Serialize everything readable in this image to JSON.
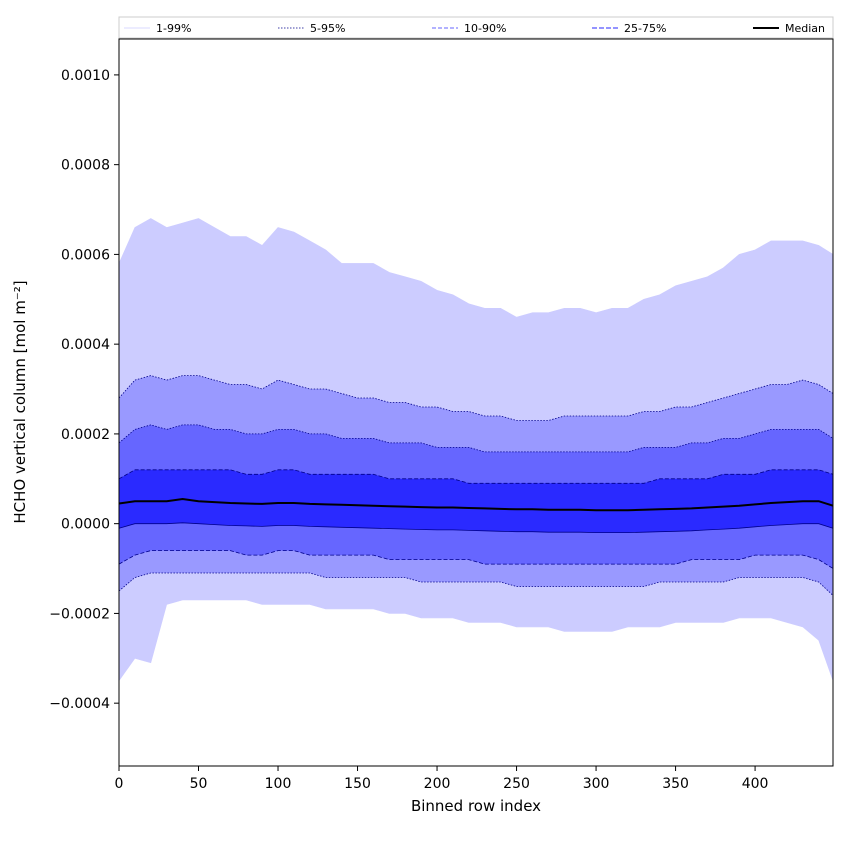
{
  "chart_data": {
    "type": "area",
    "xlabel": "Binned row index",
    "ylabel": "HCHO vertical column [mol m⁻²]",
    "xlim": [
      0,
      449
    ],
    "ylim": [
      -0.00054,
      0.00108
    ],
    "x_ticks": [
      0,
      50,
      100,
      150,
      200,
      250,
      300,
      350,
      400
    ],
    "y_ticks": [
      -0.0004,
      -0.0002,
      0.0,
      0.0002,
      0.0004,
      0.0006,
      0.0008,
      0.001
    ],
    "y_tick_labels": [
      "−0.0004",
      "−0.0002",
      "0.0000",
      "0.0002",
      "0.0004",
      "0.0006",
      "0.0008",
      "0.0010"
    ],
    "legend": {
      "placement": "top",
      "entries": [
        "1-99%",
        "5-95%",
        "10-90%",
        "25-75%",
        "Median"
      ]
    },
    "grid": false,
    "x": [
      0,
      10,
      20,
      30,
      40,
      50,
      60,
      70,
      80,
      90,
      100,
      110,
      120,
      130,
      140,
      150,
      160,
      170,
      180,
      190,
      200,
      210,
      220,
      230,
      240,
      250,
      260,
      270,
      280,
      290,
      300,
      310,
      320,
      330,
      340,
      350,
      360,
      370,
      380,
      390,
      400,
      410,
      420,
      430,
      440,
      449
    ],
    "series": [
      {
        "name": "99th percentile",
        "values": [
          0.00058,
          0.00066,
          0.00068,
          0.00066,
          0.00067,
          0.00068,
          0.00066,
          0.00064,
          0.00064,
          0.00062,
          0.00066,
          0.00065,
          0.00063,
          0.00061,
          0.00058,
          0.00058,
          0.00058,
          0.00056,
          0.00055,
          0.00054,
          0.00052,
          0.00051,
          0.00049,
          0.00048,
          0.00048,
          0.00046,
          0.00047,
          0.00047,
          0.00048,
          0.00048,
          0.00047,
          0.00048,
          0.00048,
          0.0005,
          0.00051,
          0.00053,
          0.00054,
          0.00055,
          0.00057,
          0.0006,
          0.00061,
          0.00063,
          0.00063,
          0.00063,
          0.00062,
          0.0006
        ]
      },
      {
        "name": "95th percentile",
        "values": [
          0.00028,
          0.00032,
          0.00033,
          0.00032,
          0.00033,
          0.00033,
          0.00032,
          0.00031,
          0.00031,
          0.0003,
          0.00032,
          0.00031,
          0.0003,
          0.0003,
          0.00029,
          0.00028,
          0.00028,
          0.00027,
          0.00027,
          0.00026,
          0.00026,
          0.00025,
          0.00025,
          0.00024,
          0.00024,
          0.00023,
          0.00023,
          0.00023,
          0.00024,
          0.00024,
          0.00024,
          0.00024,
          0.00024,
          0.00025,
          0.00025,
          0.00026,
          0.00026,
          0.00027,
          0.00028,
          0.00029,
          0.0003,
          0.00031,
          0.00031,
          0.00032,
          0.00031,
          0.00029
        ]
      },
      {
        "name": "90th percentile",
        "values": [
          0.00018,
          0.00021,
          0.00022,
          0.00021,
          0.00022,
          0.00022,
          0.00021,
          0.00021,
          0.0002,
          0.0002,
          0.00021,
          0.00021,
          0.0002,
          0.0002,
          0.00019,
          0.00019,
          0.00019,
          0.00018,
          0.00018,
          0.00018,
          0.00017,
          0.00017,
          0.00017,
          0.00016,
          0.00016,
          0.00016,
          0.00016,
          0.00016,
          0.00016,
          0.00016,
          0.00016,
          0.00016,
          0.00016,
          0.00017,
          0.00017,
          0.00017,
          0.00018,
          0.00018,
          0.00019,
          0.00019,
          0.0002,
          0.00021,
          0.00021,
          0.00021,
          0.00021,
          0.00019
        ]
      },
      {
        "name": "75th percentile",
        "values": [
          0.0001,
          0.00012,
          0.00012,
          0.00012,
          0.00012,
          0.00012,
          0.00012,
          0.00012,
          0.00011,
          0.00011,
          0.00012,
          0.00012,
          0.00011,
          0.00011,
          0.00011,
          0.00011,
          0.00011,
          0.0001,
          0.0001,
          0.0001,
          0.0001,
          0.0001,
          9e-05,
          9e-05,
          9e-05,
          9e-05,
          9e-05,
          9e-05,
          9e-05,
          9e-05,
          9e-05,
          9e-05,
          9e-05,
          9e-05,
          0.0001,
          0.0001,
          0.0001,
          0.0001,
          0.00011,
          0.00011,
          0.00011,
          0.00012,
          0.00012,
          0.00012,
          0.00012,
          0.00011
        ]
      },
      {
        "name": "Median",
        "values": [
          4.5e-05,
          5e-05,
          5e-05,
          5e-05,
          5.5e-05,
          5e-05,
          4.8e-05,
          4.6e-05,
          4.5e-05,
          4.4e-05,
          4.6e-05,
          4.6e-05,
          4.4e-05,
          4.3e-05,
          4.2e-05,
          4.1e-05,
          4e-05,
          3.9e-05,
          3.8e-05,
          3.7e-05,
          3.6e-05,
          3.6e-05,
          3.5e-05,
          3.4e-05,
          3.3e-05,
          3.2e-05,
          3.2e-05,
          3.1e-05,
          3.1e-05,
          3.1e-05,
          3e-05,
          3e-05,
          3e-05,
          3.1e-05,
          3.2e-05,
          3.3e-05,
          3.4e-05,
          3.6e-05,
          3.8e-05,
          4e-05,
          4.3e-05,
          4.6e-05,
          4.8e-05,
          5e-05,
          5e-05,
          4e-05
        ]
      },
      {
        "name": "25th percentile",
        "values": [
          -1e-05,
          0.0,
          0.0,
          0.0,
          2e-06,
          0.0,
          -2e-06,
          -4e-06,
          -5e-06,
          -6e-06,
          -4e-06,
          -4e-06,
          -6e-06,
          -7e-06,
          -8e-06,
          -9e-06,
          -1e-05,
          -1.1e-05,
          -1.2e-05,
          -1.3e-05,
          -1.4e-05,
          -1.4e-05,
          -1.5e-05,
          -1.6e-05,
          -1.7e-05,
          -1.8e-05,
          -1.8e-05,
          -1.9e-05,
          -1.9e-05,
          -1.9e-05,
          -2e-05,
          -2e-05,
          -2e-05,
          -1.9e-05,
          -1.8e-05,
          -1.7e-05,
          -1.6e-05,
          -1.4e-05,
          -1.2e-05,
          -1e-05,
          -7e-06,
          -4e-06,
          -2e-06,
          0.0,
          0.0,
          -1e-05
        ]
      },
      {
        "name": "10th percentile",
        "values": [
          -9e-05,
          -7e-05,
          -6e-05,
          -6e-05,
          -6e-05,
          -6e-05,
          -6e-05,
          -6e-05,
          -7e-05,
          -7e-05,
          -6e-05,
          -6e-05,
          -7e-05,
          -7e-05,
          -7e-05,
          -7e-05,
          -7e-05,
          -8e-05,
          -8e-05,
          -8e-05,
          -8e-05,
          -8e-05,
          -8e-05,
          -9e-05,
          -9e-05,
          -9e-05,
          -9e-05,
          -9e-05,
          -9e-05,
          -9e-05,
          -9e-05,
          -9e-05,
          -9e-05,
          -9e-05,
          -9e-05,
          -9e-05,
          -8e-05,
          -8e-05,
          -8e-05,
          -8e-05,
          -7e-05,
          -7e-05,
          -7e-05,
          -7e-05,
          -8e-05,
          -0.0001
        ]
      },
      {
        "name": "5th percentile",
        "values": [
          -0.00015,
          -0.00012,
          -0.00011,
          -0.00011,
          -0.00011,
          -0.00011,
          -0.00011,
          -0.00011,
          -0.00011,
          -0.00011,
          -0.00011,
          -0.00011,
          -0.00011,
          -0.00012,
          -0.00012,
          -0.00012,
          -0.00012,
          -0.00012,
          -0.00012,
          -0.00013,
          -0.00013,
          -0.00013,
          -0.00013,
          -0.00013,
          -0.00013,
          -0.00014,
          -0.00014,
          -0.00014,
          -0.00014,
          -0.00014,
          -0.00014,
          -0.00014,
          -0.00014,
          -0.00014,
          -0.00013,
          -0.00013,
          -0.00013,
          -0.00013,
          -0.00013,
          -0.00012,
          -0.00012,
          -0.00012,
          -0.00012,
          -0.00012,
          -0.00013,
          -0.00016
        ]
      },
      {
        "name": "1st percentile",
        "values": [
          -0.00035,
          -0.0003,
          -0.00031,
          -0.00018,
          -0.00017,
          -0.00017,
          -0.00017,
          -0.00017,
          -0.00017,
          -0.00018,
          -0.00018,
          -0.00018,
          -0.00018,
          -0.00019,
          -0.00019,
          -0.00019,
          -0.00019,
          -0.0002,
          -0.0002,
          -0.00021,
          -0.00021,
          -0.00021,
          -0.00022,
          -0.00022,
          -0.00022,
          -0.00023,
          -0.00023,
          -0.00023,
          -0.00024,
          -0.00024,
          -0.00024,
          -0.00024,
          -0.00023,
          -0.00023,
          -0.00023,
          -0.00022,
          -0.00022,
          -0.00022,
          -0.00022,
          -0.00021,
          -0.00021,
          -0.00021,
          -0.00022,
          -0.00023,
          -0.00026,
          -0.00035
        ]
      }
    ],
    "colors": {
      "band_1_99": "#ccccff",
      "band_5_95": "#9999ff",
      "band_10_90": "#6666ff",
      "band_25_75": "#2a2aff",
      "percentile_line": "#00008b",
      "median": "#000000",
      "axis": "#000000"
    }
  }
}
